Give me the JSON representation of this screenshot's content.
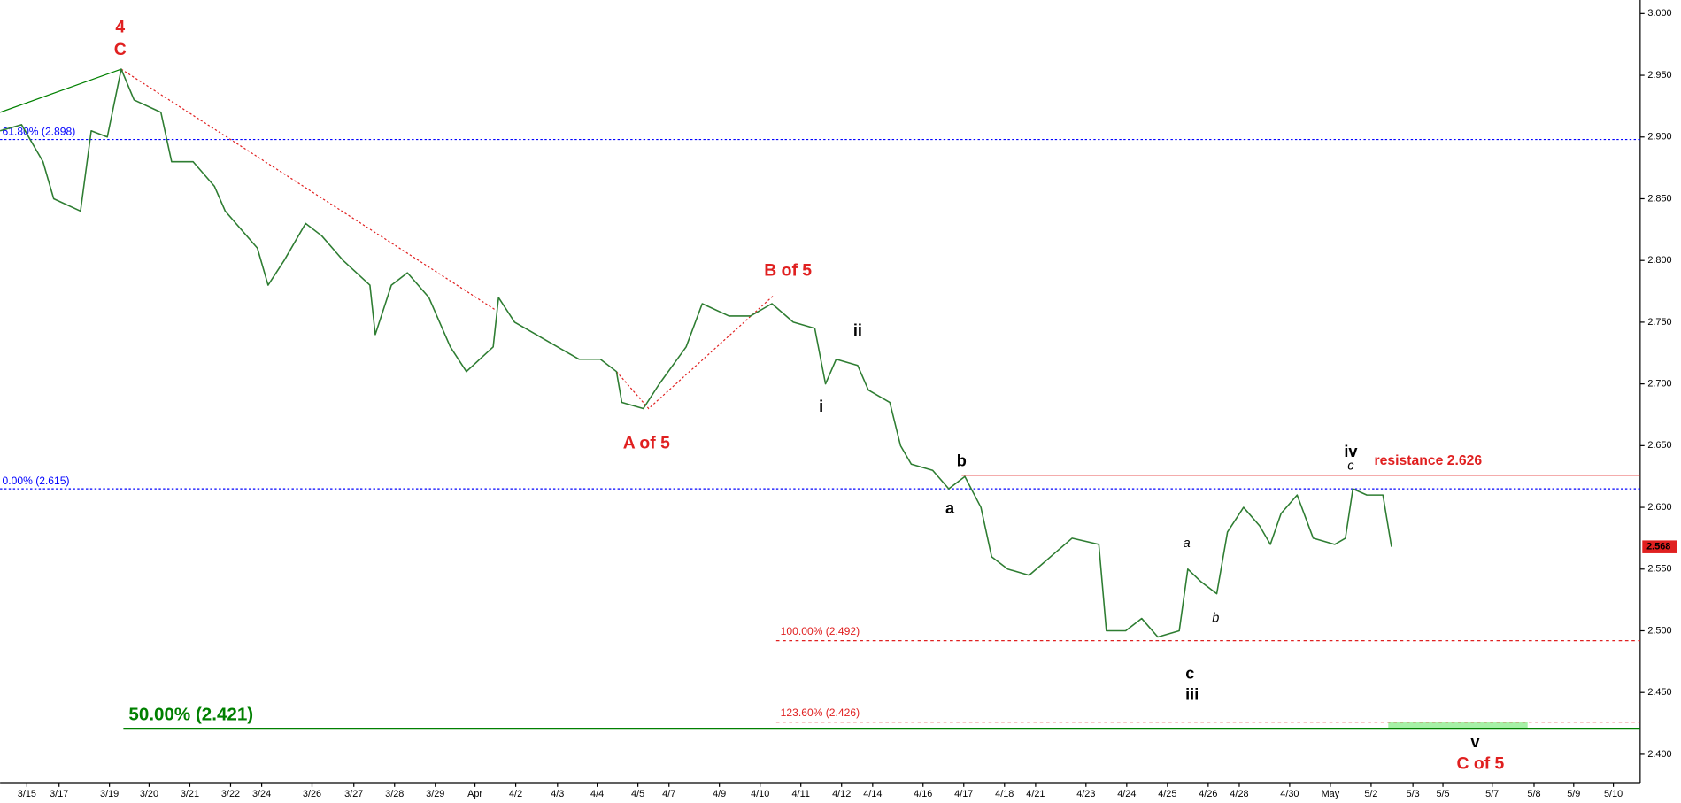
{
  "chart_data": {
    "type": "line",
    "color": "#2e7d32",
    "x": [
      0,
      2,
      4,
      5,
      7.5,
      8.5,
      10,
      11.3,
      12.5,
      15,
      16,
      18,
      20,
      21,
      22,
      24,
      25,
      26.5,
      28.5,
      30,
      32,
      34.5,
      35,
      36.5,
      38,
      40,
      42,
      43.5,
      46,
      46.5,
      48,
      50,
      52,
      54,
      56,
      57.5,
      58,
      60,
      61.5,
      64,
      65.5,
      68,
      70,
      72,
      74,
      76,
      77,
      78,
      80,
      81,
      83,
      84,
      85,
      87,
      88.5,
      90,
      91.5,
      92.5,
      94,
      96,
      98,
      100,
      102.5,
      103.2,
      105,
      106.5,
      108,
      110,
      110.8,
      112,
      113.5,
      114.5,
      116,
      117.5,
      118.5,
      119.5,
      121,
      122.5,
      124.5,
      125.5,
      126.2,
      127.5,
      129,
      129.8
    ],
    "values": [
      2.905,
      2.91,
      2.88,
      2.85,
      2.84,
      2.905,
      2.9,
      2.955,
      2.93,
      2.92,
      2.88,
      2.88,
      2.86,
      2.84,
      2.83,
      2.81,
      2.78,
      2.8,
      2.83,
      2.82,
      2.8,
      2.78,
      2.74,
      2.78,
      2.79,
      2.77,
      2.73,
      2.71,
      2.73,
      2.77,
      2.75,
      2.74,
      2.73,
      2.72,
      2.72,
      2.71,
      2.685,
      2.68,
      2.7,
      2.73,
      2.765,
      2.755,
      2.755,
      2.765,
      2.75,
      2.745,
      2.7,
      2.72,
      2.715,
      2.695,
      2.685,
      2.65,
      2.635,
      2.63,
      2.615,
      2.625,
      2.6,
      2.56,
      2.55,
      2.545,
      2.56,
      2.575,
      2.57,
      2.5,
      2.5,
      2.51,
      2.495,
      2.5,
      2.55,
      2.54,
      2.53,
      2.58,
      2.6,
      2.585,
      2.57,
      2.595,
      2.61,
      2.575,
      2.57,
      2.575,
      2.615,
      2.61,
      2.61,
      2.568
    ],
    "xlim": [
      0,
      153
    ],
    "xticks": [
      {
        "value": 2.5,
        "label": "3/15"
      },
      {
        "value": 5.5,
        "label": "3/17"
      },
      {
        "value": 10.2,
        "label": "3/19"
      },
      {
        "value": 13.9,
        "label": "3/20"
      },
      {
        "value": 17.7,
        "label": "3/21"
      },
      {
        "value": 21.5,
        "label": "3/22"
      },
      {
        "value": 24.4,
        "label": "3/24"
      },
      {
        "value": 29.1,
        "label": "3/26"
      },
      {
        "value": 33,
        "label": "3/27"
      },
      {
        "value": 36.8,
        "label": "3/28"
      },
      {
        "value": 40.6,
        "label": "3/29"
      },
      {
        "value": 44.3,
        "label": "Apr"
      },
      {
        "value": 48.1,
        "label": "4/2"
      },
      {
        "value": 52,
        "label": "4/3"
      },
      {
        "value": 55.7,
        "label": "4/4"
      },
      {
        "value": 59.5,
        "label": "4/5"
      },
      {
        "value": 62.4,
        "label": "4/7"
      },
      {
        "value": 67.1,
        "label": "4/9"
      },
      {
        "value": 70.9,
        "label": "4/10"
      },
      {
        "value": 74.7,
        "label": "4/11"
      },
      {
        "value": 78.5,
        "label": "4/12"
      },
      {
        "value": 81.4,
        "label": "4/14"
      },
      {
        "value": 86.1,
        "label": "4/16"
      },
      {
        "value": 89.9,
        "label": "4/17"
      },
      {
        "value": 93.7,
        "label": "4/18"
      },
      {
        "value": 96.6,
        "label": "4/21"
      },
      {
        "value": 101.3,
        "label": "4/23"
      },
      {
        "value": 105.1,
        "label": "4/24"
      },
      {
        "value": 108.9,
        "label": "4/25"
      },
      {
        "value": 112.7,
        "label": "4/26"
      },
      {
        "value": 115.6,
        "label": "4/28"
      },
      {
        "value": 120.3,
        "label": "4/30"
      },
      {
        "value": 124.1,
        "label": "May"
      },
      {
        "value": 127.9,
        "label": "5/2"
      },
      {
        "value": 131.8,
        "label": "5/3"
      },
      {
        "value": 134.6,
        "label": "5/5"
      },
      {
        "value": 139.2,
        "label": "5/7"
      },
      {
        "value": 143.1,
        "label": "5/8"
      },
      {
        "value": 146.8,
        "label": "5/9"
      },
      {
        "value": 150.5,
        "label": "5/10"
      }
    ],
    "ylim": [
      2.377,
      3.011
    ],
    "yticks": [
      {
        "value": 2.4,
        "label": "2.400"
      },
      {
        "value": 2.45,
        "label": "2.450"
      },
      {
        "value": 2.5,
        "label": "2.500"
      },
      {
        "value": 2.55,
        "label": "2.550"
      },
      {
        "value": 2.6,
        "label": "2.600"
      },
      {
        "value": 2.65,
        "label": "2.650"
      },
      {
        "value": 2.7,
        "label": "2.700"
      },
      {
        "value": 2.75,
        "label": "2.750"
      },
      {
        "value": 2.8,
        "label": "2.800"
      },
      {
        "value": 2.85,
        "label": "2.850"
      },
      {
        "value": 2.9,
        "label": "2.900"
      },
      {
        "value": 2.95,
        "label": "2.950"
      },
      {
        "value": 3.0,
        "label": "3.000"
      }
    ],
    "reference_lines": [
      {
        "value": 2.898,
        "label": "61.80% (2.898)",
        "color": "#0000ff",
        "style": "dotted",
        "start": 0
      },
      {
        "value": 2.615,
        "label": "0.00% (2.615)",
        "color": "#0000ff",
        "style": "dotted",
        "start": 0
      },
      {
        "value": 2.626,
        "label": "resistance 2.626",
        "color": "#e02020",
        "style": "solid",
        "start": 89.7
      },
      {
        "value": 2.492,
        "label": "100.00% (2.492)",
        "color": "#e02020",
        "style": "dashed",
        "start": 72.4
      },
      {
        "value": 2.426,
        "label": "123.60% (2.426)",
        "color": "#e02020",
        "style": "dashed",
        "start": 72.4
      },
      {
        "value": 2.421,
        "label": "50.00% (2.421)",
        "color": "#008000",
        "style": "solid",
        "start": 11.5
      }
    ],
    "target_zone": {
      "x": [
        129.5,
        142.5
      ],
      "y": [
        2.421,
        2.426
      ],
      "color": "#90ee90"
    },
    "trendlines": [
      {
        "color": "#008000",
        "style": "solid",
        "x": [
          0,
          11.3
        ],
        "y": [
          2.92,
          2.955
        ]
      },
      {
        "color": "#e02020",
        "style": "dotted",
        "x": [
          11.3,
          46.2
        ],
        "y": [
          2.955,
          2.76
        ]
      },
      {
        "color": "#e02020",
        "style": "dotted",
        "x": [
          57.5,
          60.5,
          72.2
        ],
        "y": [
          2.71,
          2.68,
          2.772
        ]
      }
    ],
    "annotations": [
      "4",
      "C",
      "B of 5",
      "A of 5",
      "ii",
      "i",
      "b",
      "a",
      "iv",
      "c",
      "a",
      "b",
      "c",
      "iii",
      "v",
      "C of 5"
    ]
  }
}
